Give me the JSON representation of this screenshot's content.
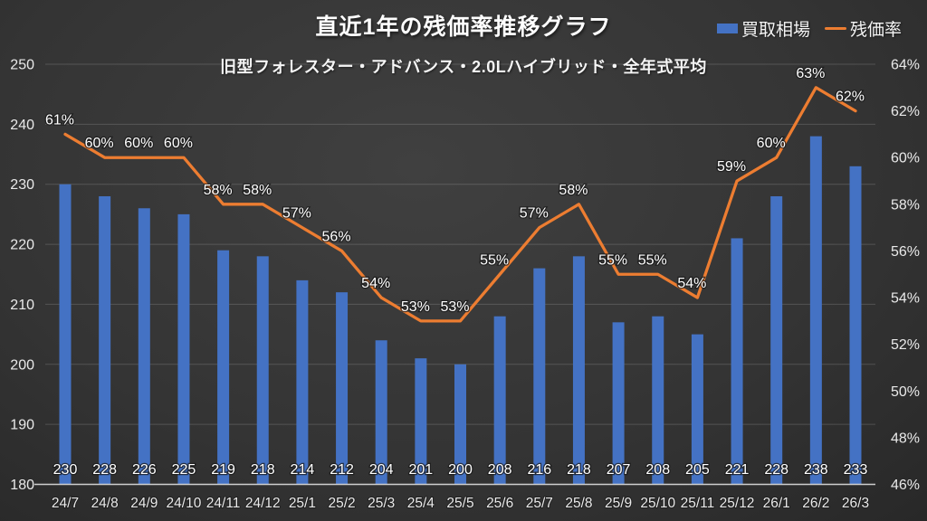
{
  "header": {
    "title": "直近1年の残価率推移グラフ",
    "subtitle": "旧型フォレスター・アドバンス・2.0Lハイブリッド・全年式平均"
  },
  "legend": [
    {
      "label": "買取相場",
      "type": "bar",
      "color": "#4472C4"
    },
    {
      "label": "残価率",
      "type": "line",
      "color": "#ED7D31"
    }
  ],
  "chart_data": {
    "type": "bar",
    "title": "直近1年の残価率推移グラフ",
    "subtitle": "旧型フォレスター・アドバンス・2.0Lハイブリッド・全年式平均",
    "legend_position": "top-right",
    "grid": true,
    "categories": [
      "24/7",
      "24/8",
      "24/9",
      "24/10",
      "24/11",
      "24/12",
      "25/1",
      "25/2",
      "25/3",
      "25/4",
      "25/5",
      "25/6",
      "25/7",
      "25/8",
      "25/9",
      "25/10",
      "25/11",
      "25/12",
      "26/1",
      "26/2",
      "26/3"
    ],
    "series": [
      {
        "name": "買取相場",
        "type": "bar",
        "axis": "left",
        "color": "#4472C4",
        "values": [
          230,
          228,
          226,
          225,
          219,
          218,
          214,
          212,
          204,
          201,
          200,
          208,
          216,
          218,
          207,
          208,
          205,
          221,
          228,
          238,
          233
        ],
        "labels": [
          "230",
          "228",
          "226",
          "225",
          "219",
          "218",
          "214",
          "212",
          "204",
          "201",
          "200",
          "208",
          "216",
          "218",
          "207",
          "208",
          "205",
          "221",
          "228",
          "238",
          "233"
        ]
      },
      {
        "name": "残価率",
        "type": "line",
        "axis": "right",
        "color": "#ED7D31",
        "values": [
          61,
          60,
          60,
          60,
          58,
          58,
          57,
          56,
          54,
          53,
          53,
          55,
          57,
          58,
          55,
          55,
          54,
          59,
          60,
          63,
          62
        ],
        "labels": [
          "61%",
          "60%",
          "60%",
          "60%",
          "58%",
          "58%",
          "57%",
          "56%",
          "54%",
          "53%",
          "53%",
          "55%",
          "57%",
          "58%",
          "55%",
          "55%",
          "54%",
          "59%",
          "60%",
          "63%",
          "62%"
        ]
      }
    ],
    "left_axis": {
      "min": 180,
      "max": 250,
      "step": 10,
      "ticks": [
        "250",
        "240",
        "230",
        "220",
        "210",
        "200",
        "190",
        "180"
      ]
    },
    "right_axis": {
      "min": 46,
      "max": 64,
      "step": 2,
      "ticks": [
        "64%",
        "62%",
        "60%",
        "58%",
        "56%",
        "54%",
        "52%",
        "50%",
        "48%",
        "46%"
      ]
    }
  }
}
